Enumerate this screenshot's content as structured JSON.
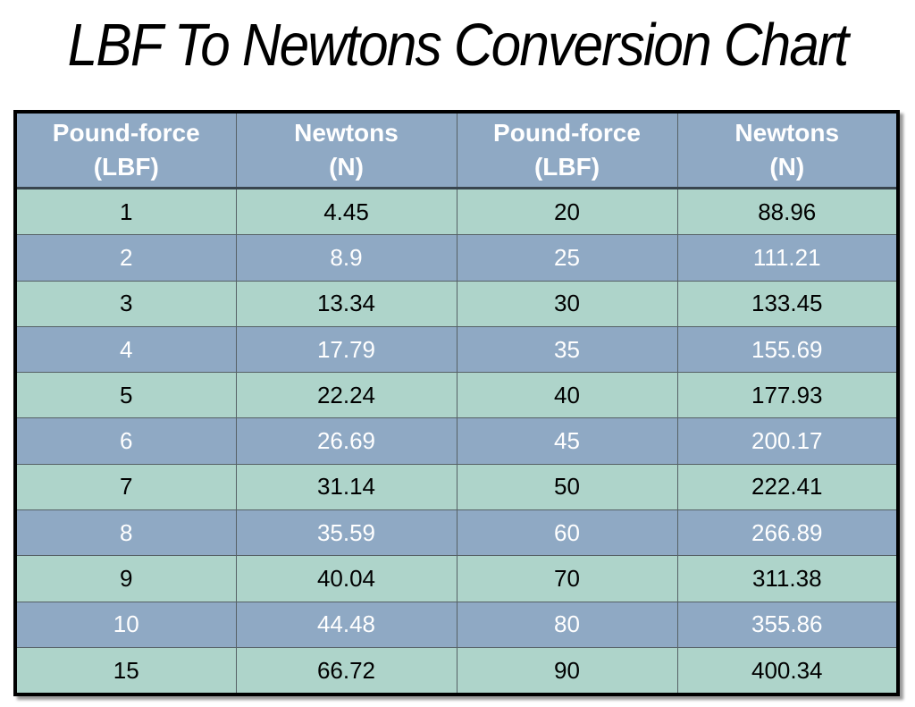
{
  "page": {
    "title": "LBF To Newtons Conversion Chart"
  },
  "colors": {
    "header_bg": "#8fa9c4",
    "header_text": "#ffffff",
    "row_blue_bg": "#8fa9c4",
    "row_blue_text": "#ffffff",
    "row_mint_bg": "#aed4ca",
    "row_mint_text": "#000000",
    "cell_border": "#566166",
    "outer_border": "#000000"
  },
  "table": {
    "headers": [
      {
        "line1": "Pound-force",
        "line2": "(LBF)"
      },
      {
        "line1": "Newtons",
        "line2": "(N)"
      },
      {
        "line1": "Pound-force",
        "line2": "(LBF)"
      },
      {
        "line1": "Newtons",
        "line2": "(N)"
      }
    ],
    "rows": [
      [
        "1",
        "4.45",
        "20",
        "88.96"
      ],
      [
        "2",
        "8.9",
        "25",
        "111.21"
      ],
      [
        "3",
        "13.34",
        "30",
        "133.45"
      ],
      [
        "4",
        "17.79",
        "35",
        "155.69"
      ],
      [
        "5",
        "22.24",
        "40",
        "177.93"
      ],
      [
        "6",
        "26.69",
        "45",
        "200.17"
      ],
      [
        "7",
        "31.14",
        "50",
        "222.41"
      ],
      [
        "8",
        "35.59",
        "60",
        "266.89"
      ],
      [
        "9",
        "40.04",
        "70",
        "311.38"
      ],
      [
        "10",
        "44.48",
        "80",
        "355.86"
      ],
      [
        "15",
        "66.72",
        "90",
        "400.34"
      ]
    ]
  },
  "chart_data": {
    "type": "table",
    "title": "LBF To Newtons Conversion Chart",
    "columns": [
      "Pound-force (LBF)",
      "Newtons (N)",
      "Pound-force (LBF)",
      "Newtons (N)"
    ],
    "pairs": [
      {
        "lbf": 1,
        "newtons": 4.45
      },
      {
        "lbf": 2,
        "newtons": 8.9
      },
      {
        "lbf": 3,
        "newtons": 13.34
      },
      {
        "lbf": 4,
        "newtons": 17.79
      },
      {
        "lbf": 5,
        "newtons": 22.24
      },
      {
        "lbf": 6,
        "newtons": 26.69
      },
      {
        "lbf": 7,
        "newtons": 31.14
      },
      {
        "lbf": 8,
        "newtons": 35.59
      },
      {
        "lbf": 9,
        "newtons": 40.04
      },
      {
        "lbf": 10,
        "newtons": 44.48
      },
      {
        "lbf": 15,
        "newtons": 66.72
      },
      {
        "lbf": 20,
        "newtons": 88.96
      },
      {
        "lbf": 25,
        "newtons": 111.21
      },
      {
        "lbf": 30,
        "newtons": 133.45
      },
      {
        "lbf": 35,
        "newtons": 155.69
      },
      {
        "lbf": 40,
        "newtons": 177.93
      },
      {
        "lbf": 45,
        "newtons": 200.17
      },
      {
        "lbf": 50,
        "newtons": 222.41
      },
      {
        "lbf": 60,
        "newtons": 266.89
      },
      {
        "lbf": 70,
        "newtons": 311.38
      },
      {
        "lbf": 80,
        "newtons": 355.86
      },
      {
        "lbf": 90,
        "newtons": 400.34
      }
    ]
  }
}
